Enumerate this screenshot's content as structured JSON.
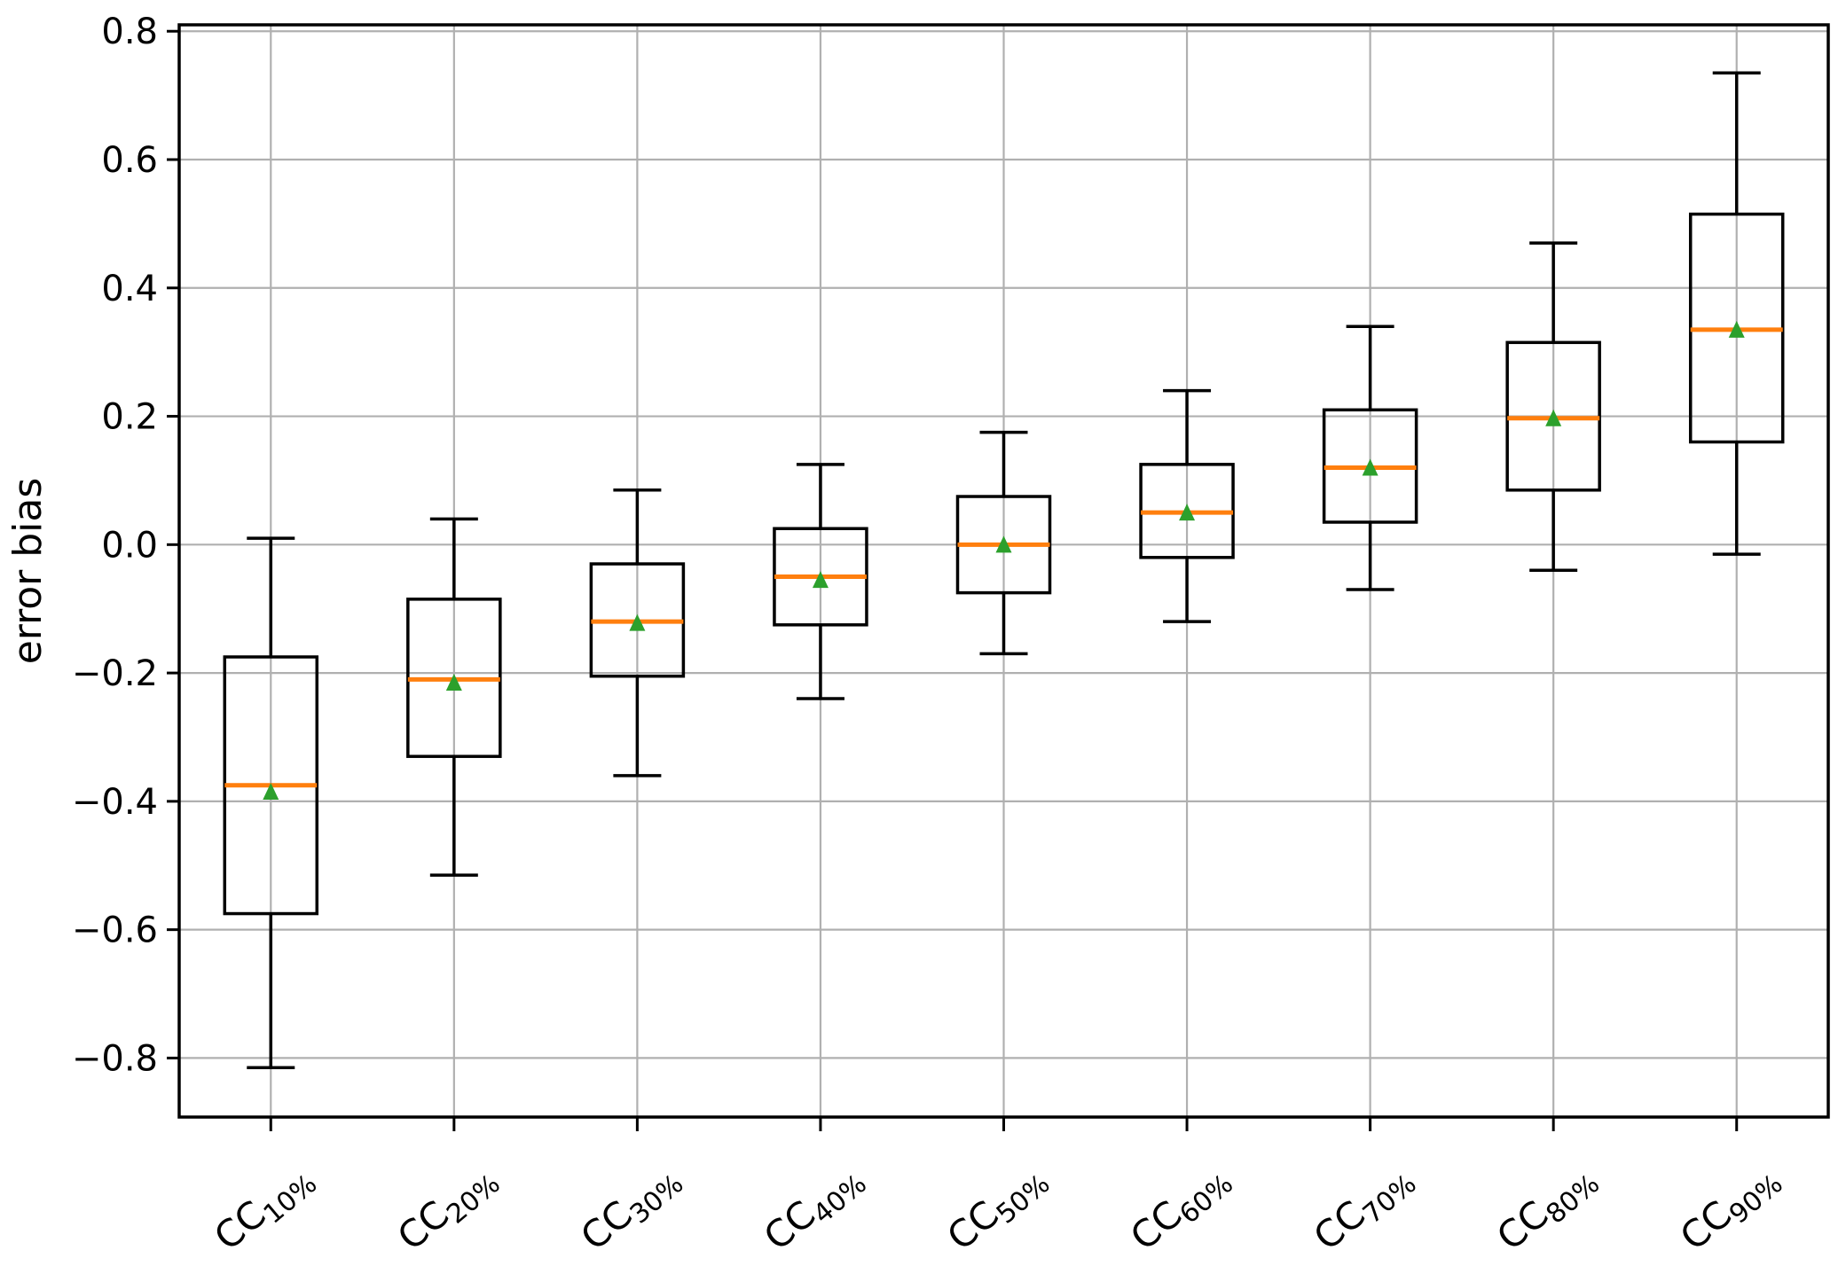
{
  "chart_data": {
    "type": "box",
    "title": "",
    "xlabel": "",
    "ylabel": "error bias",
    "ylim": [
      -0.892,
      0.81
    ],
    "grid": true,
    "legend": "none",
    "yticks": [
      {
        "value": 0.8,
        "label": "0.8"
      },
      {
        "value": 0.6,
        "label": "0.6"
      },
      {
        "value": 0.4,
        "label": "0.4"
      },
      {
        "value": 0.2,
        "label": "0.2"
      },
      {
        "value": 0.0,
        "label": "0.0"
      },
      {
        "value": -0.2,
        "label": "−0.2"
      },
      {
        "value": -0.4,
        "label": "−0.4"
      },
      {
        "value": -0.6,
        "label": "−0.6"
      },
      {
        "value": -0.8,
        "label": "−0.8"
      }
    ],
    "boxes": [
      {
        "label": "CC10%",
        "label_base": "CC",
        "label_sub": "10%",
        "whislo": -0.815,
        "q1": -0.575,
        "med": -0.375,
        "mean": -0.385,
        "q3": -0.175,
        "whishi": 0.01
      },
      {
        "label": "CC20%",
        "label_base": "CC",
        "label_sub": "20%",
        "whislo": -0.515,
        "q1": -0.33,
        "med": -0.21,
        "mean": -0.215,
        "q3": -0.085,
        "whishi": 0.04
      },
      {
        "label": "CC30%",
        "label_base": "CC",
        "label_sub": "30%",
        "whislo": -0.36,
        "q1": -0.205,
        "med": -0.12,
        "mean": -0.122,
        "q3": -0.03,
        "whishi": 0.085
      },
      {
        "label": "CC40%",
        "label_base": "CC",
        "label_sub": "40%",
        "whislo": -0.24,
        "q1": -0.125,
        "med": -0.05,
        "mean": -0.055,
        "q3": 0.025,
        "whishi": 0.125
      },
      {
        "label": "CC50%",
        "label_base": "CC",
        "label_sub": "50%",
        "whislo": -0.17,
        "q1": -0.075,
        "med": 0.0,
        "mean": 0.0,
        "q3": 0.075,
        "whishi": 0.175
      },
      {
        "label": "CC60%",
        "label_base": "CC",
        "label_sub": "60%",
        "whislo": -0.12,
        "q1": -0.02,
        "med": 0.05,
        "mean": 0.05,
        "q3": 0.125,
        "whishi": 0.24
      },
      {
        "label": "CC70%",
        "label_base": "CC",
        "label_sub": "70%",
        "whislo": -0.07,
        "q1": 0.035,
        "med": 0.12,
        "mean": 0.12,
        "q3": 0.21,
        "whishi": 0.34
      },
      {
        "label": "CC80%",
        "label_base": "CC",
        "label_sub": "80%",
        "whislo": -0.04,
        "q1": 0.085,
        "med": 0.197,
        "mean": 0.197,
        "q3": 0.315,
        "whishi": 0.47
      },
      {
        "label": "CC90%",
        "label_base": "CC",
        "label_sub": "90%",
        "whislo": -0.015,
        "q1": 0.16,
        "med": 0.335,
        "mean": 0.335,
        "q3": 0.515,
        "whishi": 0.735
      }
    ],
    "colors": {
      "median": "#ff7f0e",
      "mean_marker": "#2ca02c",
      "box_line": "#000000",
      "grid": "#b0b0b0",
      "background": "#ffffff"
    }
  }
}
